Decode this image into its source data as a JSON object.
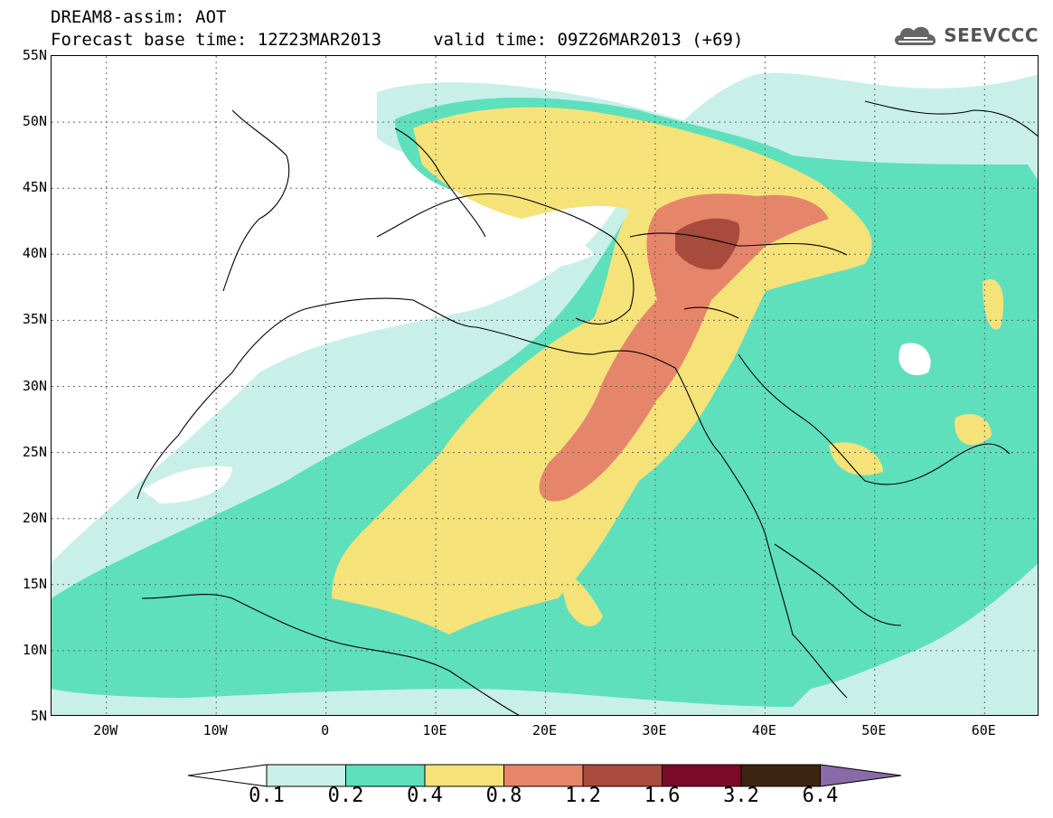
{
  "header": {
    "title_line1": "DREAM8-assim: AOT",
    "title_line2": "Forecast base time: 12Z23MAR2013     valid time: 09Z26MAR2013 (+69)",
    "logo_text": "SEEVCCC",
    "logo_icon": "cloud-icon"
  },
  "map": {
    "variable": "AOT",
    "model": "DREAM8-assim",
    "base_time": "12Z23MAR2013",
    "valid_time": "09Z26MAR2013",
    "lead_hours": 69,
    "lat_range": [
      5,
      55
    ],
    "lon_range": [
      -25,
      65
    ],
    "lat_ticks": [
      "5N",
      "10N",
      "15N",
      "20N",
      "25N",
      "30N",
      "35N",
      "40N",
      "45N",
      "50N",
      "55N"
    ],
    "lon_ticks": [
      "20W",
      "10W",
      "0",
      "10E",
      "20E",
      "30E",
      "40E",
      "50E",
      "60E"
    ],
    "grid": "dotted",
    "max_region": "Turkey (central Anatolia)"
  },
  "colorbar": {
    "levels": [
      "0.1",
      "0.2",
      "0.4",
      "0.8",
      "1.2",
      "1.6",
      "3.2",
      "6.4"
    ],
    "colors": [
      "#ffffff",
      "#c8f0e8",
      "#5ee0bc",
      "#f5e37a",
      "#e5866a",
      "#a84a3c",
      "#7a0a28",
      "#3c2410",
      "#8a6aa8"
    ]
  }
}
